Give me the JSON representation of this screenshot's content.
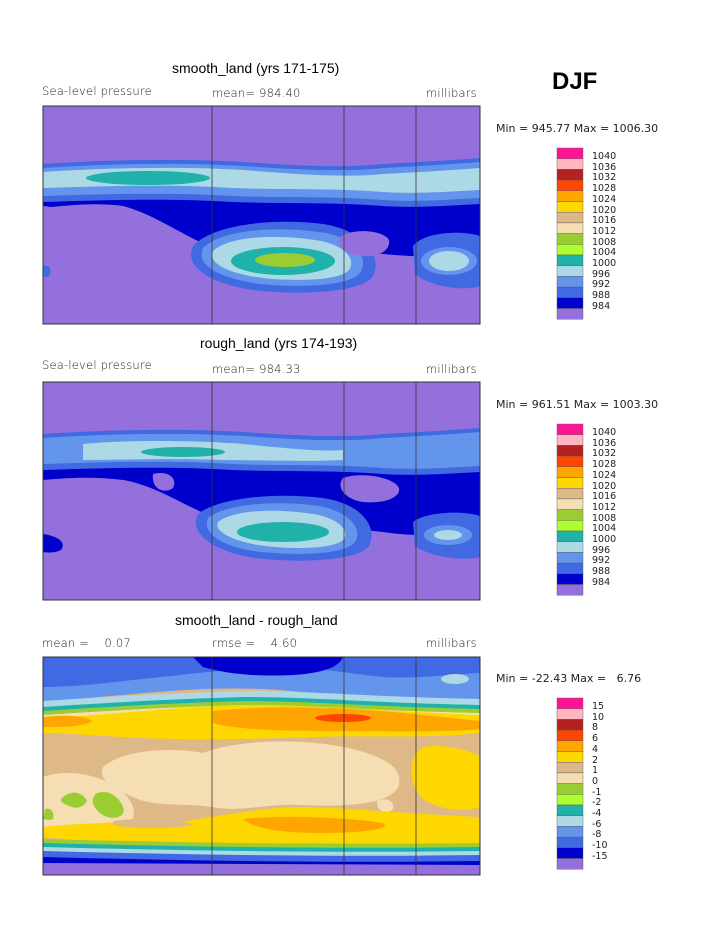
{
  "season": "DJF",
  "panels": [
    {
      "title": "smooth_land (yrs 171-175)",
      "left_label": "Sea-level pressure",
      "center_label": "mean= 984.40",
      "right_label": "millibars",
      "stats": "Min = 945.77 Max = 1006.30",
      "legend": [
        "1040",
        "1036",
        "1032",
        "1028",
        "1024",
        "1020",
        "1016",
        "1012",
        "1008",
        "1004",
        "1000",
        "996",
        "992",
        "988",
        "984"
      ]
    },
    {
      "title": "rough_land (yrs 174-193)",
      "left_label": "Sea-level pressure",
      "center_label": "mean= 984.33",
      "right_label": "millibars",
      "stats": "Min = 961.51 Max = 1003.30",
      "legend": [
        "1040",
        "1036",
        "1032",
        "1028",
        "1024",
        "1020",
        "1016",
        "1012",
        "1008",
        "1004",
        "1000",
        "996",
        "992",
        "988",
        "984"
      ]
    },
    {
      "title": "smooth_land - rough_land",
      "left_label": "mean =    0.07",
      "center_label": "rmse =    4.60",
      "right_label": "millibars",
      "stats": "Min = -22.43 Max =   6.76",
      "legend": [
        "15",
        "10",
        "8",
        "6",
        "4",
        "2",
        "1",
        "0",
        "-1",
        "-2",
        "-4",
        "-6",
        "-8",
        "-10",
        "-15"
      ]
    }
  ],
  "colors": {
    "abs_scale": [
      "#ff1493",
      "#ffb6c1",
      "#b22222",
      "#ff4500",
      "#ffa500",
      "#ffd700",
      "#deb887",
      "#f5deb3",
      "#9acd32",
      "#adff2f",
      "#20b2aa",
      "#add8e6",
      "#6495ed",
      "#4169e1",
      "#0000cd",
      "#9370db"
    ],
    "diff_scale": [
      "#ff1493",
      "#ffb6c1",
      "#b22222",
      "#ff4500",
      "#ffa500",
      "#ffd700",
      "#deb887",
      "#f5deb3",
      "#9acd32",
      "#adff2f",
      "#20b2aa",
      "#add8e6",
      "#6495ed",
      "#4169e1",
      "#0000cd",
      "#9370db"
    ]
  },
  "chart_data": [
    {
      "type": "heatmap",
      "title": "smooth_land (yrs 171-175)",
      "variable": "Sea-level pressure",
      "units": "millibars",
      "mean": 984.4,
      "min": 945.77,
      "max": 1006.3,
      "contour_levels": [
        984,
        988,
        992,
        996,
        1000,
        1004,
        1008,
        1012,
        1016,
        1020,
        1024,
        1028,
        1032,
        1036,
        1040
      ]
    },
    {
      "type": "heatmap",
      "title": "rough_land (yrs 174-193)",
      "variable": "Sea-level pressure",
      "units": "millibars",
      "mean": 984.33,
      "min": 961.51,
      "max": 1003.3,
      "contour_levels": [
        984,
        988,
        992,
        996,
        1000,
        1004,
        1008,
        1012,
        1016,
        1020,
        1024,
        1028,
        1032,
        1036,
        1040
      ]
    },
    {
      "type": "heatmap",
      "title": "smooth_land - rough_land",
      "units": "millibars",
      "mean": 0.07,
      "rmse": 4.6,
      "min": -22.43,
      "max": 6.76,
      "contour_levels": [
        -15,
        -10,
        -8,
        -6,
        -4,
        -2,
        -1,
        0,
        1,
        2,
        4,
        6,
        8,
        10,
        15
      ]
    }
  ]
}
